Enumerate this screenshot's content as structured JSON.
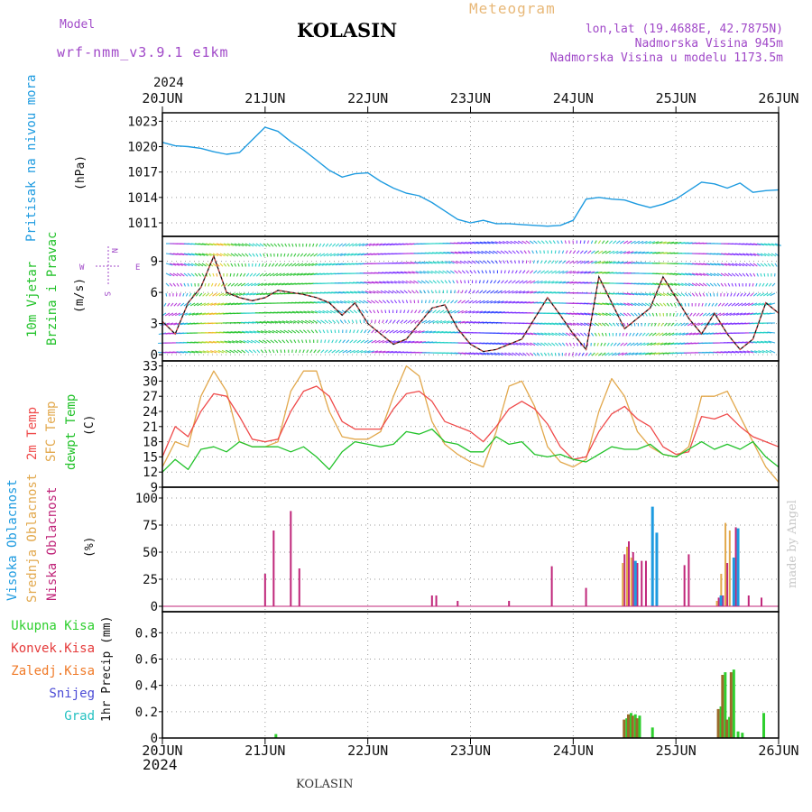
{
  "header": {
    "model_label": "Model",
    "model_name": "wrf-nmm_v3.9.1 e1km",
    "station": "KOLASIN",
    "product": "Meteogram",
    "lonlat": "lon,lat (19.4688E, 42.7875N)",
    "elevation": "Nadmorska Visina 945m",
    "model_elevation": "Nadmorska Visina u modelu 1173.5m",
    "year_top": "2024",
    "year_bottom": "2024",
    "footer_station": "KOLASIN",
    "credit": "made by Angel"
  },
  "colors": {
    "pressure": "#1e9be0",
    "temp2m": "#ef4a4a",
    "sfc": "#e2a84c",
    "dewpt": "#22c22a",
    "high_cloud": "#1e9be0",
    "mid_cloud": "#e2a84c",
    "low_cloud": "#c0267a",
    "total_rain": "#2ecf2e",
    "conv_rain": "#e53b3b",
    "freezing_rain": "#f07a28",
    "snow": "#4b4bd6",
    "hail": "#26c2c2",
    "title": "#000000",
    "meta": "#a048c8"
  },
  "chart_data": [
    {
      "panel": "pressure",
      "type": "line",
      "x_axis": {
        "type": "time",
        "ticks": [
          "20JUN",
          "21JUN",
          "22JUN",
          "23JUN",
          "24JUN",
          "25JUN",
          "26JUN"
        ],
        "range": [
          "2024-06-20T00",
          "2024-06-26T00"
        ]
      },
      "ylabel_left": "Pritisak na nivou mora",
      "ylabel_unit": "(hPa)",
      "yticks": [
        1011,
        1014,
        1017,
        1020,
        1023
      ],
      "ylim": [
        1009.4,
        1024.0
      ],
      "grid": true,
      "series": [
        {
          "x": [
            "2024-06-20T00",
            "2024-06-20T03",
            "2024-06-20T06",
            "2024-06-20T09",
            "2024-06-20T12",
            "2024-06-20T15",
            "2024-06-20T18",
            "2024-06-20T21",
            "2024-06-21T00",
            "2024-06-21T03",
            "2024-06-21T06",
            "2024-06-21T09",
            "2024-06-21T12",
            "2024-06-21T15",
            "2024-06-21T18",
            "2024-06-21T21",
            "2024-06-22T00",
            "2024-06-22T03",
            "2024-06-22T06",
            "2024-06-22T09",
            "2024-06-22T12",
            "2024-06-22T15",
            "2024-06-22T18",
            "2024-06-22T21",
            "2024-06-23T00",
            "2024-06-23T03",
            "2024-06-23T06",
            "2024-06-23T09",
            "2024-06-23T12",
            "2024-06-23T15",
            "2024-06-23T18",
            "2024-06-23T21",
            "2024-06-24T00",
            "2024-06-24T03",
            "2024-06-24T06",
            "2024-06-24T09",
            "2024-06-24T12",
            "2024-06-24T15",
            "2024-06-24T18",
            "2024-06-24T21",
            "2024-06-25T00",
            "2024-06-25T03",
            "2024-06-25T06",
            "2024-06-25T09",
            "2024-06-25T12",
            "2024-06-25T15",
            "2024-06-25T18",
            "2024-06-25T21",
            "2024-06-26T00"
          ],
          "values": [
            1020.5,
            1020.1,
            1020.0,
            1019.8,
            1019.4,
            1019.1,
            1019.3,
            1020.8,
            1022.3,
            1021.8,
            1020.6,
            1019.6,
            1018.4,
            1017.2,
            1016.4,
            1016.8,
            1016.9,
            1015.9,
            1015.1,
            1014.5,
            1014.2,
            1013.4,
            1012.4,
            1011.4,
            1011.0,
            1011.3,
            1010.9,
            1010.9,
            1010.8,
            1010.7,
            1010.6,
            1010.7,
            1011.3,
            1013.8,
            1014.0,
            1013.8,
            1013.7,
            1013.2,
            1012.8,
            1013.2,
            1013.8,
            1014.8,
            1015.8,
            1015.6,
            1015.1,
            1015.7,
            1014.6,
            1014.8,
            1014.9
          ]
        }
      ]
    },
    {
      "panel": "wind",
      "type": "line",
      "ylabel_left_1": "10m Vjetar",
      "ylabel_left_2": "Brzina i Pravac",
      "ylabel_unit": "(m/s)",
      "compass": {
        "n": "N",
        "s": "S",
        "e": "E",
        "w": "W"
      },
      "yticks": [
        0,
        3,
        6,
        9
      ],
      "ylim": [
        -0.6,
        11.4
      ],
      "grid": true,
      "series": [
        {
          "name": "speed",
          "x": [
            "2024-06-20T00",
            "2024-06-20T03",
            "2024-06-20T06",
            "2024-06-20T09",
            "2024-06-20T12",
            "2024-06-20T15",
            "2024-06-20T18",
            "2024-06-20T21",
            "2024-06-21T00",
            "2024-06-21T03",
            "2024-06-21T06",
            "2024-06-21T09",
            "2024-06-21T12",
            "2024-06-21T15",
            "2024-06-21T18",
            "2024-06-21T21",
            "2024-06-22T00",
            "2024-06-22T03",
            "2024-06-22T06",
            "2024-06-22T09",
            "2024-06-22T12",
            "2024-06-22T15",
            "2024-06-22T18",
            "2024-06-22T21",
            "2024-06-23T00",
            "2024-06-23T03",
            "2024-06-23T06",
            "2024-06-23T09",
            "2024-06-23T12",
            "2024-06-23T15",
            "2024-06-23T18",
            "2024-06-23T21",
            "2024-06-24T00",
            "2024-06-24T03",
            "2024-06-24T06",
            "2024-06-24T09",
            "2024-06-24T12",
            "2024-06-24T15",
            "2024-06-24T18",
            "2024-06-24T21",
            "2024-06-25T00",
            "2024-06-25T03",
            "2024-06-25T06",
            "2024-06-25T09",
            "2024-06-25T12",
            "2024-06-25T15",
            "2024-06-25T18",
            "2024-06-25T21",
            "2024-06-26T00"
          ],
          "values": [
            3.2,
            2.0,
            5.0,
            6.5,
            9.5,
            6.0,
            5.5,
            5.2,
            5.5,
            6.2,
            6.0,
            5.8,
            5.5,
            5.0,
            3.8,
            5.0,
            3.0,
            2.0,
            1.0,
            1.5,
            3.0,
            4.5,
            4.8,
            2.5,
            1.0,
            0.3,
            0.5,
            1.0,
            1.5,
            3.5,
            5.5,
            3.8,
            2.0,
            0.5,
            7.5,
            5.0,
            2.5,
            3.5,
            4.5,
            7.5,
            5.5,
            3.5,
            2.0,
            4.0,
            2.0,
            0.5,
            1.5,
            5.0,
            4.0
          ]
        }
      ]
    },
    {
      "panel": "temperature",
      "type": "line",
      "ylabel_t2m": "2m Temp",
      "ylabel_sfc": "SFC Temp",
      "ylabel_dew": "dewpt Temp",
      "ylabel_unit": "(C)",
      "yticks": [
        9,
        12,
        15,
        18,
        21,
        24,
        27,
        30,
        33
      ],
      "ylim": [
        9,
        34
      ],
      "grid": true,
      "series": [
        {
          "name": "2m Temp",
          "x": [
            "2024-06-20T00",
            "2024-06-20T03",
            "2024-06-20T06",
            "2024-06-20T09",
            "2024-06-20T12",
            "2024-06-20T15",
            "2024-06-20T18",
            "2024-06-20T21",
            "2024-06-21T00",
            "2024-06-21T03",
            "2024-06-21T06",
            "2024-06-21T09",
            "2024-06-21T12",
            "2024-06-21T15",
            "2024-06-21T18",
            "2024-06-21T21",
            "2024-06-22T00",
            "2024-06-22T03",
            "2024-06-22T06",
            "2024-06-22T09",
            "2024-06-22T12",
            "2024-06-22T15",
            "2024-06-22T18",
            "2024-06-22T21",
            "2024-06-23T00",
            "2024-06-23T03",
            "2024-06-23T06",
            "2024-06-23T09",
            "2024-06-23T12",
            "2024-06-23T15",
            "2024-06-23T18",
            "2024-06-23T21",
            "2024-06-24T00",
            "2024-06-24T03",
            "2024-06-24T06",
            "2024-06-24T09",
            "2024-06-24T12",
            "2024-06-24T15",
            "2024-06-24T18",
            "2024-06-24T21",
            "2024-06-25T00",
            "2024-06-25T03",
            "2024-06-25T06",
            "2024-06-25T09",
            "2024-06-25T12",
            "2024-06-25T15",
            "2024-06-25T18",
            "2024-06-25T21",
            "2024-06-26T00"
          ],
          "values": [
            15.0,
            21.0,
            19.0,
            24.0,
            27.5,
            27.0,
            23.0,
            18.5,
            18.0,
            18.5,
            24.0,
            28.0,
            29.0,
            27.0,
            22.0,
            20.5,
            20.5,
            20.5,
            24.5,
            27.5,
            28.0,
            26.0,
            22.0,
            21.0,
            20.0,
            18.0,
            21.0,
            24.5,
            26.0,
            24.5,
            21.5,
            17.0,
            14.5,
            15.0,
            20.0,
            23.5,
            25.0,
            22.5,
            21.0,
            17.0,
            15.5,
            16.0,
            23.0,
            22.5,
            23.5,
            21.0,
            19.0,
            18.0,
            17.0
          ]
        },
        {
          "name": "SFC Temp",
          "x": [
            "2024-06-20T00",
            "2024-06-20T03",
            "2024-06-20T06",
            "2024-06-20T09",
            "2024-06-20T12",
            "2024-06-20T15",
            "2024-06-20T18",
            "2024-06-20T21",
            "2024-06-21T00",
            "2024-06-21T03",
            "2024-06-21T06",
            "2024-06-21T09",
            "2024-06-21T12",
            "2024-06-21T15",
            "2024-06-21T18",
            "2024-06-21T21",
            "2024-06-22T00",
            "2024-06-22T03",
            "2024-06-22T06",
            "2024-06-22T09",
            "2024-06-22T12",
            "2024-06-22T15",
            "2024-06-22T18",
            "2024-06-22T21",
            "2024-06-23T00",
            "2024-06-23T03",
            "2024-06-23T06",
            "2024-06-23T09",
            "2024-06-23T12",
            "2024-06-23T15",
            "2024-06-23T18",
            "2024-06-23T21",
            "2024-06-24T00",
            "2024-06-24T03",
            "2024-06-24T06",
            "2024-06-24T09",
            "2024-06-24T12",
            "2024-06-24T15",
            "2024-06-24T18",
            "2024-06-24T21",
            "2024-06-25T00",
            "2024-06-25T03",
            "2024-06-25T06",
            "2024-06-25T09",
            "2024-06-25T12",
            "2024-06-25T15",
            "2024-06-25T18",
            "2024-06-25T21",
            "2024-06-26T00"
          ],
          "values": [
            13.0,
            18.0,
            17.0,
            27.0,
            32.0,
            28.0,
            18.0,
            17.0,
            17.0,
            18.0,
            28.0,
            32.0,
            32.0,
            24.0,
            19.0,
            18.5,
            18.5,
            20.0,
            27.0,
            33.0,
            31.0,
            22.0,
            17.5,
            15.5,
            14.0,
            13.0,
            20.0,
            29.0,
            30.0,
            25.0,
            17.0,
            14.0,
            13.0,
            14.5,
            24.0,
            30.5,
            27.0,
            20.0,
            17.0,
            15.5,
            15.0,
            17.0,
            27.0,
            27.0,
            28.0,
            23.0,
            18.0,
            13.0,
            10.0
          ]
        },
        {
          "name": "dewpt Temp",
          "x": [
            "2024-06-20T00",
            "2024-06-20T03",
            "2024-06-20T06",
            "2024-06-20T09",
            "2024-06-20T12",
            "2024-06-20T15",
            "2024-06-20T18",
            "2024-06-20T21",
            "2024-06-21T00",
            "2024-06-21T03",
            "2024-06-21T06",
            "2024-06-21T09",
            "2024-06-21T12",
            "2024-06-21T15",
            "2024-06-21T18",
            "2024-06-21T21",
            "2024-06-22T00",
            "2024-06-22T03",
            "2024-06-22T06",
            "2024-06-22T09",
            "2024-06-22T12",
            "2024-06-22T15",
            "2024-06-22T18",
            "2024-06-22T21",
            "2024-06-23T00",
            "2024-06-23T03",
            "2024-06-23T06",
            "2024-06-23T09",
            "2024-06-23T12",
            "2024-06-23T15",
            "2024-06-23T18",
            "2024-06-23T21",
            "2024-06-24T00",
            "2024-06-24T03",
            "2024-06-24T06",
            "2024-06-24T09",
            "2024-06-24T12",
            "2024-06-24T15",
            "2024-06-24T18",
            "2024-06-24T21",
            "2024-06-25T00",
            "2024-06-25T03",
            "2024-06-25T06",
            "2024-06-25T09",
            "2024-06-25T12",
            "2024-06-25T15",
            "2024-06-25T18",
            "2024-06-25T21",
            "2024-06-26T00"
          ],
          "values": [
            12.0,
            14.5,
            12.5,
            16.5,
            17.0,
            16.0,
            18.0,
            17.0,
            17.0,
            17.0,
            16.0,
            17.0,
            15.0,
            12.5,
            16.0,
            18.0,
            17.5,
            17.0,
            17.5,
            20.0,
            19.5,
            20.5,
            18.0,
            17.5,
            16.0,
            16.0,
            19.0,
            17.5,
            18.0,
            15.5,
            15.0,
            15.5,
            14.5,
            14.0,
            15.5,
            17.0,
            16.5,
            16.5,
            17.5,
            15.5,
            15.0,
            16.5,
            18.0,
            16.5,
            17.5,
            16.5,
            18.0,
            15.0,
            13.0
          ]
        }
      ]
    },
    {
      "panel": "cloud",
      "type": "bar",
      "ylabel_high": "Visoka Oblacnost",
      "ylabel_mid": "Srednja Oblacnost",
      "ylabel_low": "Niska Oblacnost",
      "ylabel_unit": "(%)",
      "yticks": [
        0,
        25,
        50,
        75,
        100
      ],
      "ylim": [
        -5,
        110
      ],
      "grid": true,
      "series": [
        {
          "name": "Niska Oblacnost",
          "x": [
            "2024-06-21T00",
            "2024-06-21T02",
            "2024-06-21T06",
            "2024-06-21T08",
            "2024-06-22T15",
            "2024-06-22T16",
            "2024-06-22T21",
            "2024-06-23T09",
            "2024-06-23T19",
            "2024-06-24T03",
            "2024-06-24T12",
            "2024-06-24T13",
            "2024-06-24T14",
            "2024-06-24T15",
            "2024-06-24T16",
            "2024-06-24T17",
            "2024-06-25T02",
            "2024-06-25T03",
            "2024-06-25T10",
            "2024-06-25T11",
            "2024-06-25T12",
            "2024-06-25T14",
            "2024-06-25T17",
            "2024-06-25T20"
          ],
          "values": [
            30,
            70,
            88,
            35,
            10,
            10,
            5,
            5,
            37,
            17,
            48,
            60,
            50,
            40,
            42,
            42,
            38,
            48,
            8,
            10,
            40,
            73,
            10,
            8
          ]
        },
        {
          "name": "Srednja Oblacnost",
          "x": [
            "2024-06-24T12",
            "2024-06-24T13",
            "2024-06-24T14",
            "2024-06-25T10",
            "2024-06-25T11",
            "2024-06-25T12",
            "2024-06-25T13"
          ],
          "values": [
            40,
            55,
            45,
            5,
            30,
            77,
            70
          ]
        },
        {
          "name": "Visoka Oblacnost",
          "x": [
            "2024-06-24T14",
            "2024-06-24T18",
            "2024-06-24T19",
            "2024-06-25T10",
            "2024-06-25T13",
            "2024-06-25T14"
          ],
          "values": [
            42,
            92,
            68,
            10,
            45,
            72
          ]
        }
      ]
    },
    {
      "panel": "precip",
      "type": "bar",
      "legend": [
        "Ukupna Kisa",
        "Konvek.Kisa",
        "Zaledj.Kisa",
        "Snijeg",
        "Grad"
      ],
      "ylabel_unit": "1hr Precip (mm)",
      "yticks": [
        "0",
        "0.2",
        "0.4",
        "0.6",
        "0.8"
      ],
      "ylim": [
        0,
        0.96
      ],
      "grid": true,
      "series": [
        {
          "name": "Ukupna Kisa",
          "x": [
            "2024-06-21T02",
            "2024-06-24T12",
            "2024-06-24T13",
            "2024-06-24T14",
            "2024-06-24T15",
            "2024-06-24T18",
            "2024-06-25T10",
            "2024-06-25T11",
            "2024-06-25T12",
            "2024-06-25T13",
            "2024-06-25T14",
            "2024-06-25T15",
            "2024-06-25T20"
          ],
          "values": [
            0.03,
            0.15,
            0.19,
            0.18,
            0.17,
            0.08,
            0.24,
            0.5,
            0.16,
            0.52,
            0.05,
            0.04,
            0.19
          ]
        },
        {
          "name": "Konvek.Kisa",
          "x": [
            "2024-06-24T12",
            "2024-06-24T13",
            "2024-06-24T14",
            "2024-06-24T15",
            "2024-06-25T10",
            "2024-06-25T11",
            "2024-06-25T12",
            "2024-06-25T13"
          ],
          "values": [
            0.14,
            0.18,
            0.17,
            0.15,
            0.22,
            0.48,
            0.14,
            0.5
          ]
        }
      ]
    }
  ]
}
